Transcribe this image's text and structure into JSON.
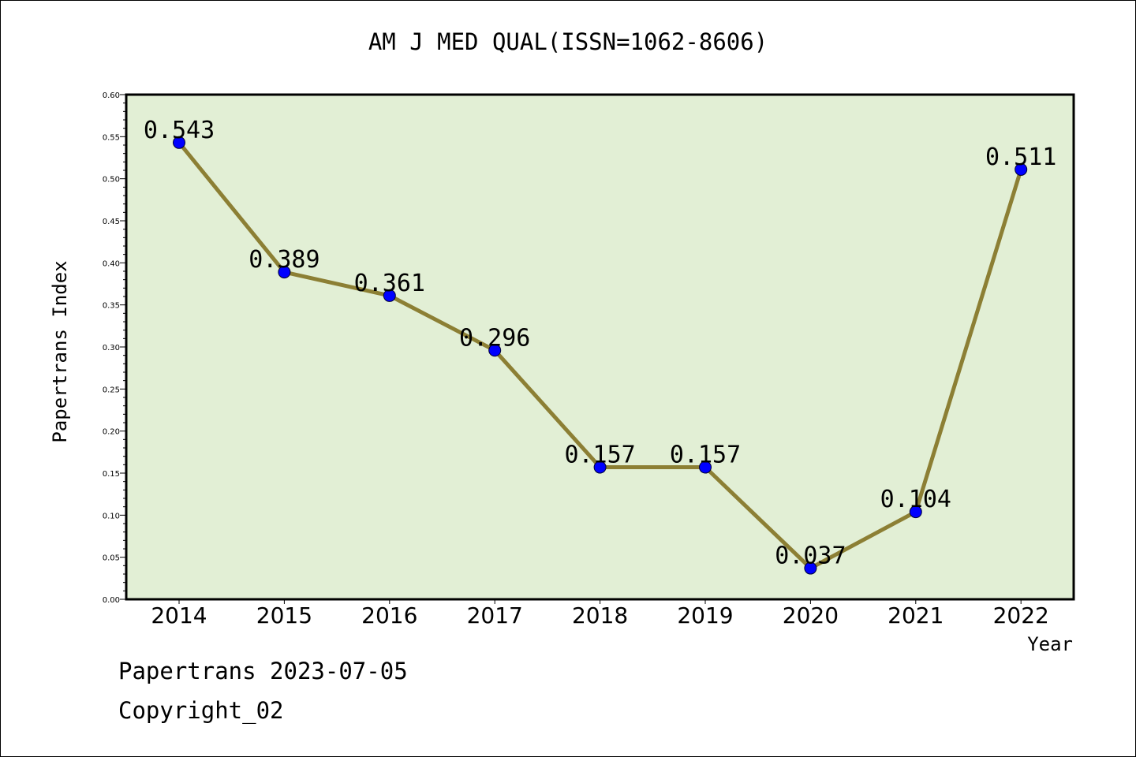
{
  "title": "AM J MED QUAL(ISSN=1062-8606)",
  "footer": {
    "line1": "Papertrans 2023-07-05",
    "line2": "Copyright_02"
  },
  "colors": {
    "plot_background": "#e2efd5",
    "line": "#8c7f34",
    "marker": "#0000ff",
    "axis": "#000000"
  },
  "chart_data": {
    "type": "line",
    "title": "AM J MED QUAL(ISSN=1062-8606)",
    "xlabel": "Year",
    "ylabel": "Papertrans Index",
    "categories": [
      "2014",
      "2015",
      "2016",
      "2017",
      "2018",
      "2019",
      "2020",
      "2021",
      "2022"
    ],
    "values": [
      0.543,
      0.389,
      0.361,
      0.296,
      0.157,
      0.157,
      0.037,
      0.104,
      0.511
    ],
    "data_labels": [
      "0.543",
      "0.389",
      "0.361",
      "0.296",
      "0.157",
      "0.157",
      "0.037",
      "0.104",
      "0.511"
    ],
    "ylim": [
      0,
      0.6
    ],
    "yticks": [
      "0.00",
      "0.05",
      "0.10",
      "0.15",
      "0.20",
      "0.25",
      "0.30",
      "0.35",
      "0.40",
      "0.45",
      "0.50",
      "0.55",
      "0.60"
    ],
    "grid": false,
    "legend": "none"
  }
}
